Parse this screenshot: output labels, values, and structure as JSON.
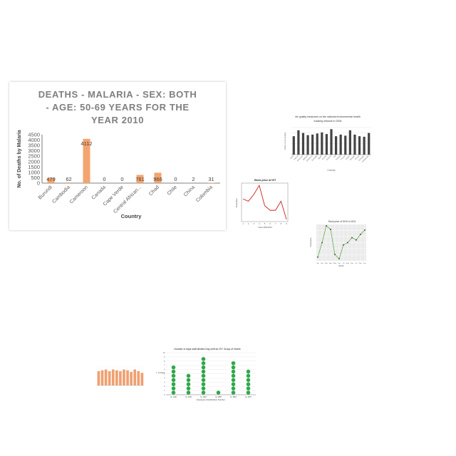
{
  "charts": [
    {
      "type": "bar",
      "title": "DEATHS - MALARIA - SEX: BOTH - AGE: 50-69 YEARS FOR THE YEAR 2010",
      "title_lines": [
        "DEATHS - MALARIA - SEX: BOTH",
        "- AGE: 50-69 YEARS FOR THE",
        "YEAR 2010"
      ],
      "xlabel": "Country",
      "ylabel": "No. of Deaths by Malaria",
      "categories": [
        "Burundi",
        "Cambodia",
        "Cameroon",
        "Canada",
        "Cape Verde",
        "Central African...",
        "Chad",
        "Chile",
        "China",
        "Colombia"
      ],
      "values": [
        479,
        62,
        4112,
        0,
        0,
        761,
        966,
        0,
        2,
        31
      ],
      "data_labels": [
        "479",
        "62",
        "4112",
        "0",
        "0",
        "761",
        "966",
        "0",
        "2",
        "31"
      ],
      "yticks": [
        0,
        500,
        1000,
        1500,
        2000,
        2500,
        3000,
        3500,
        4000,
        4500
      ],
      "ylim": [
        0,
        4500
      ],
      "color": "#f4a46e",
      "grid": false
    },
    {
      "type": "bar",
      "title": "Air quality measures on the national environmental health tracking network in 2004",
      "title_lines": [
        "Air quality measures on the national environmental health",
        "tracking network in 2004"
      ],
      "xlabel": "Country",
      "ylabel": "Index of air quality",
      "categories": [
        "Cuba",
        "Cyprus",
        "Denmark",
        "Djibouti",
        "Dominica",
        "Ecuador",
        "Egypt",
        "Eritrea",
        "Estonia",
        "Fiji",
        "Finland",
        "France",
        "Gabon",
        "Georgia",
        "Ghana",
        "Grenada",
        "Guatemala"
      ],
      "values": [
        34,
        45,
        40,
        36,
        37,
        39,
        41,
        38,
        47,
        34,
        37,
        35,
        45,
        37,
        34,
        33,
        40
      ],
      "ylim": [
        0,
        50
      ],
      "color": "#444444",
      "grid": true
    },
    {
      "type": "line",
      "title": "Stock price of IGT",
      "xlabel": "Years 2006-2014",
      "ylabel": "Stock price",
      "x": [
        1,
        2,
        3,
        4,
        5,
        6,
        7,
        8,
        9
      ],
      "values": [
        34,
        33,
        36,
        40,
        31,
        29,
        29,
        33,
        25
      ],
      "ylim": [
        24,
        41
      ],
      "color": "#cc2222",
      "grid": false
    },
    {
      "type": "line",
      "title": "Stock price of EIVO in 2011",
      "xlabel": "Month",
      "ylabel": "Stock price",
      "categories": [
        "Jan",
        "Feb",
        "Mar",
        "Apr",
        "May",
        "Jun",
        "Jul",
        "Aug",
        "Sep",
        "Oct",
        "Nov",
        "Dec"
      ],
      "values": [
        1.1,
        5.5,
        10.6,
        9.5,
        1.9,
        0.6,
        4.8,
        5.5,
        7.0,
        6.3,
        8.0,
        9.3
      ],
      "ylim": [
        0,
        11
      ],
      "color": "#55aa33",
      "grid": true
    },
    {
      "type": "bar",
      "title": "",
      "values": [
        17,
        18,
        19,
        17,
        19,
        18,
        17,
        19,
        18,
        16,
        19,
        17,
        15
      ],
      "ylim": [
        0,
        22
      ],
      "color": "#f0a070",
      "grid": true
    },
    {
      "type": "scatter",
      "title": "Number of days staff allotted Day shift for ISY Group of Hotels",
      "xlabel": "Employee Identification Number",
      "ylabel": "No. of Days",
      "categories": [
        "Id. 1148",
        "Id. 1346",
        "Id. 1523",
        "Id. 3658",
        "Id. 3863",
        "Id. 4457"
      ],
      "values": [
        7,
        5,
        9,
        1,
        8,
        6
      ],
      "yticks": [
        0,
        1,
        2,
        3,
        4,
        5,
        6,
        7,
        8,
        9,
        10
      ],
      "ylim": [
        0,
        10
      ],
      "color": "#2ea84a",
      "grid": true
    }
  ]
}
